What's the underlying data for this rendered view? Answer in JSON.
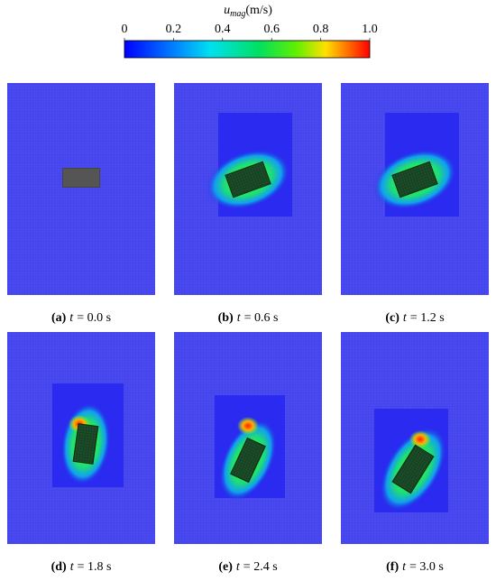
{
  "colorbar": {
    "symbol": "u",
    "subscript": "mag",
    "unit": "(m/s)",
    "ticks": [
      0,
      0.2,
      0.4,
      0.6,
      0.8,
      {
        "value": 1,
        "label": "1.0"
      }
    ],
    "range": [
      0,
      1
    ]
  },
  "panels": [
    {
      "label": "(a)",
      "var": "t",
      "text": "= 0.0 s"
    },
    {
      "label": "(b)",
      "var": "t",
      "text": "= 0.6 s"
    },
    {
      "label": "(c)",
      "var": "t",
      "text": "= 1.2 s"
    },
    {
      "label": "(d)",
      "var": "t",
      "text": "= 1.8 s"
    },
    {
      "label": "(e)",
      "var": "t",
      "text": "= 2.4 s"
    },
    {
      "label": "(f)",
      "var": "t",
      "text": "= 3.0 s"
    }
  ]
}
